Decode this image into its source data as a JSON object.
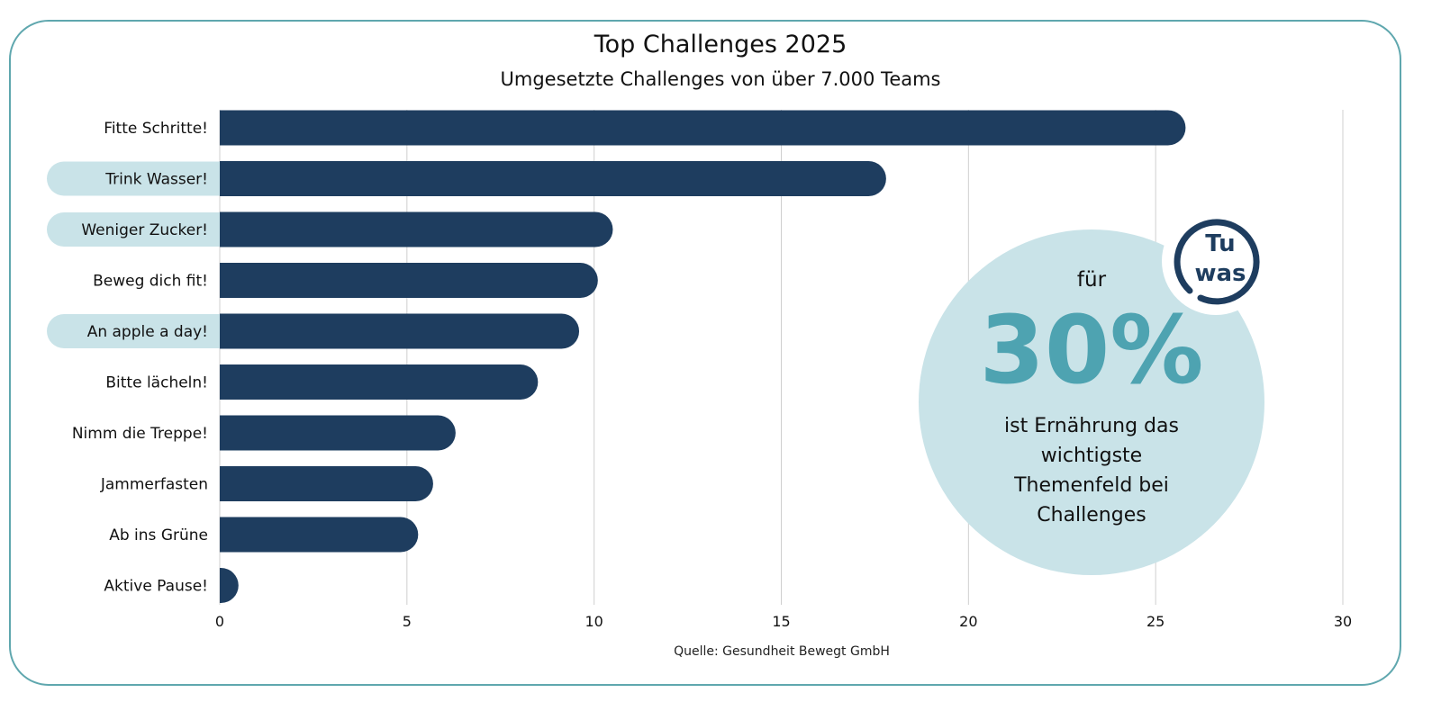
{
  "chart_data": {
    "type": "bar",
    "orientation": "horizontal",
    "title": "Top Challenges 2025",
    "subtitle": "Umgesetzte Challenges von über 7.000 Teams",
    "source": "Quelle: Gesundheit Bewegt GmbH",
    "categories": [
      "Fitte Schritte!",
      "Trink Wasser!",
      "Weniger Zucker!",
      "Beweg dich fit!",
      "An apple a day!",
      "Bitte lächeln!",
      "Nimm die Treppe!",
      "Jammerfasten",
      "Ab ins Grüne",
      "Aktive Pause!"
    ],
    "highlighted": [
      "Trink Wasser!",
      "Weniger Zucker!",
      "An apple a day!"
    ],
    "values": [
      25.8,
      17.8,
      10.5,
      10.1,
      9.6,
      8.5,
      6.3,
      5.7,
      5.3,
      0.5
    ],
    "xlim": [
      0,
      30
    ],
    "xticks": [
      0,
      5,
      10,
      15,
      20,
      25,
      30
    ],
    "grid": true,
    "bar_color": "#1e3d5f",
    "highlight_color": "#c9e3e8"
  },
  "callout": {
    "top": "für",
    "big": "30%",
    "lines": [
      "ist Ernährung das",
      "wichtigste",
      "Themenfeld bei",
      "Challenges"
    ],
    "color": "#4ea3b1",
    "bg": "#c9e3e8"
  },
  "logo": {
    "line1": "Tu",
    "line2": "was",
    "color": "#1e3d5f"
  }
}
